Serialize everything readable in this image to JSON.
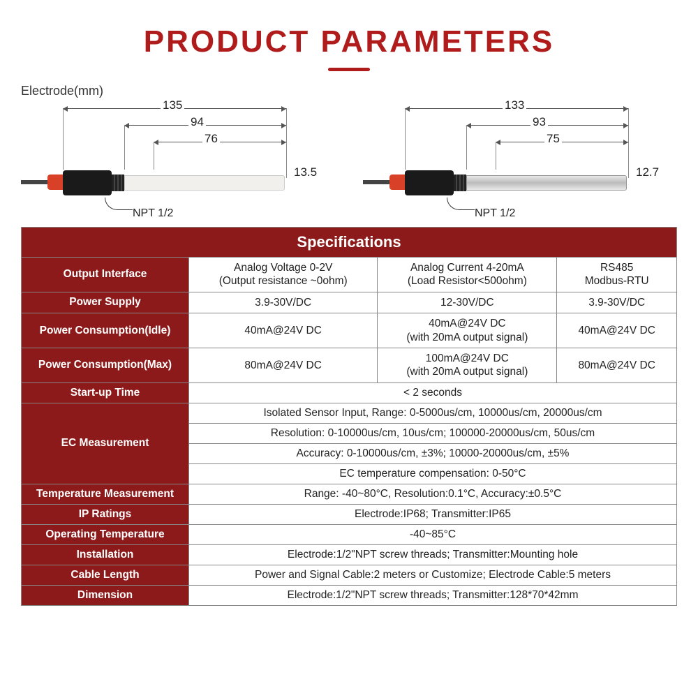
{
  "title": "PRODUCT PARAMETERS",
  "electrode_label": "Electrode(mm)",
  "diagrams": {
    "left": {
      "d1": "135",
      "d2": "94",
      "d3": "76",
      "dia": "13.5",
      "npt": "NPT 1/2"
    },
    "right": {
      "d1": "133",
      "d2": "93",
      "d3": "75",
      "dia": "12.7",
      "npt": "NPT 1/2"
    }
  },
  "table": {
    "header": "Specifications",
    "rows": [
      {
        "label": "Output Interface",
        "cells": [
          "Analog Voltage 0-2V\n(Output resistance ~0ohm)",
          "Analog Current 4-20mA\n(Load Resistor<500ohm)",
          "RS485\nModbus-RTU"
        ]
      },
      {
        "label": "Power Supply",
        "cells": [
          "3.9-30V/DC",
          "12-30V/DC",
          "3.9-30V/DC"
        ]
      },
      {
        "label": "Power Consumption(Idle)",
        "cells": [
          "40mA@24V DC",
          "40mA@24V DC\n(with 20mA output signal)",
          "40mA@24V DC"
        ]
      },
      {
        "label": "Power Consumption(Max)",
        "cells": [
          "80mA@24V DC",
          "100mA@24V DC\n(with 20mA output signal)",
          "80mA@24V DC"
        ]
      },
      {
        "label": "Start-up Time",
        "span": "< 2 seconds"
      },
      {
        "label": "EC Measurement",
        "multispan": [
          "Isolated Sensor Input, Range: 0-5000us/cm, 10000us/cm, 20000us/cm",
          "Resolution: 0-10000us/cm, 10us/cm; 100000-20000us/cm, 50us/cm",
          "Accuracy: 0-10000us/cm, ±3%; 10000-20000us/cm, ±5%",
          "EC temperature compensation: 0-50°C"
        ]
      },
      {
        "label": "Temperature Measurement",
        "span": "Range: -40~80°C, Resolution:0.1°C, Accuracy:±0.5°C"
      },
      {
        "label": "IP Ratings",
        "span": "Electrode:IP68; Transmitter:IP65"
      },
      {
        "label": "Operating Temperature",
        "span": "-40~85°C"
      },
      {
        "label": "Installation",
        "span": "Electrode:1/2\"NPT screw threads; Transmitter:Mounting hole"
      },
      {
        "label": "Cable Length",
        "span": "Power and Signal Cable:2 meters or Customize; Electrode Cable:5 meters"
      },
      {
        "label": "Dimension",
        "span": "Electrode:1/2\"NPT screw threads; Transmitter:128*70*42mm"
      }
    ]
  },
  "colors": {
    "brand": "#b01c1c",
    "header_bg": "#8d1a1a",
    "border": "#888888"
  }
}
